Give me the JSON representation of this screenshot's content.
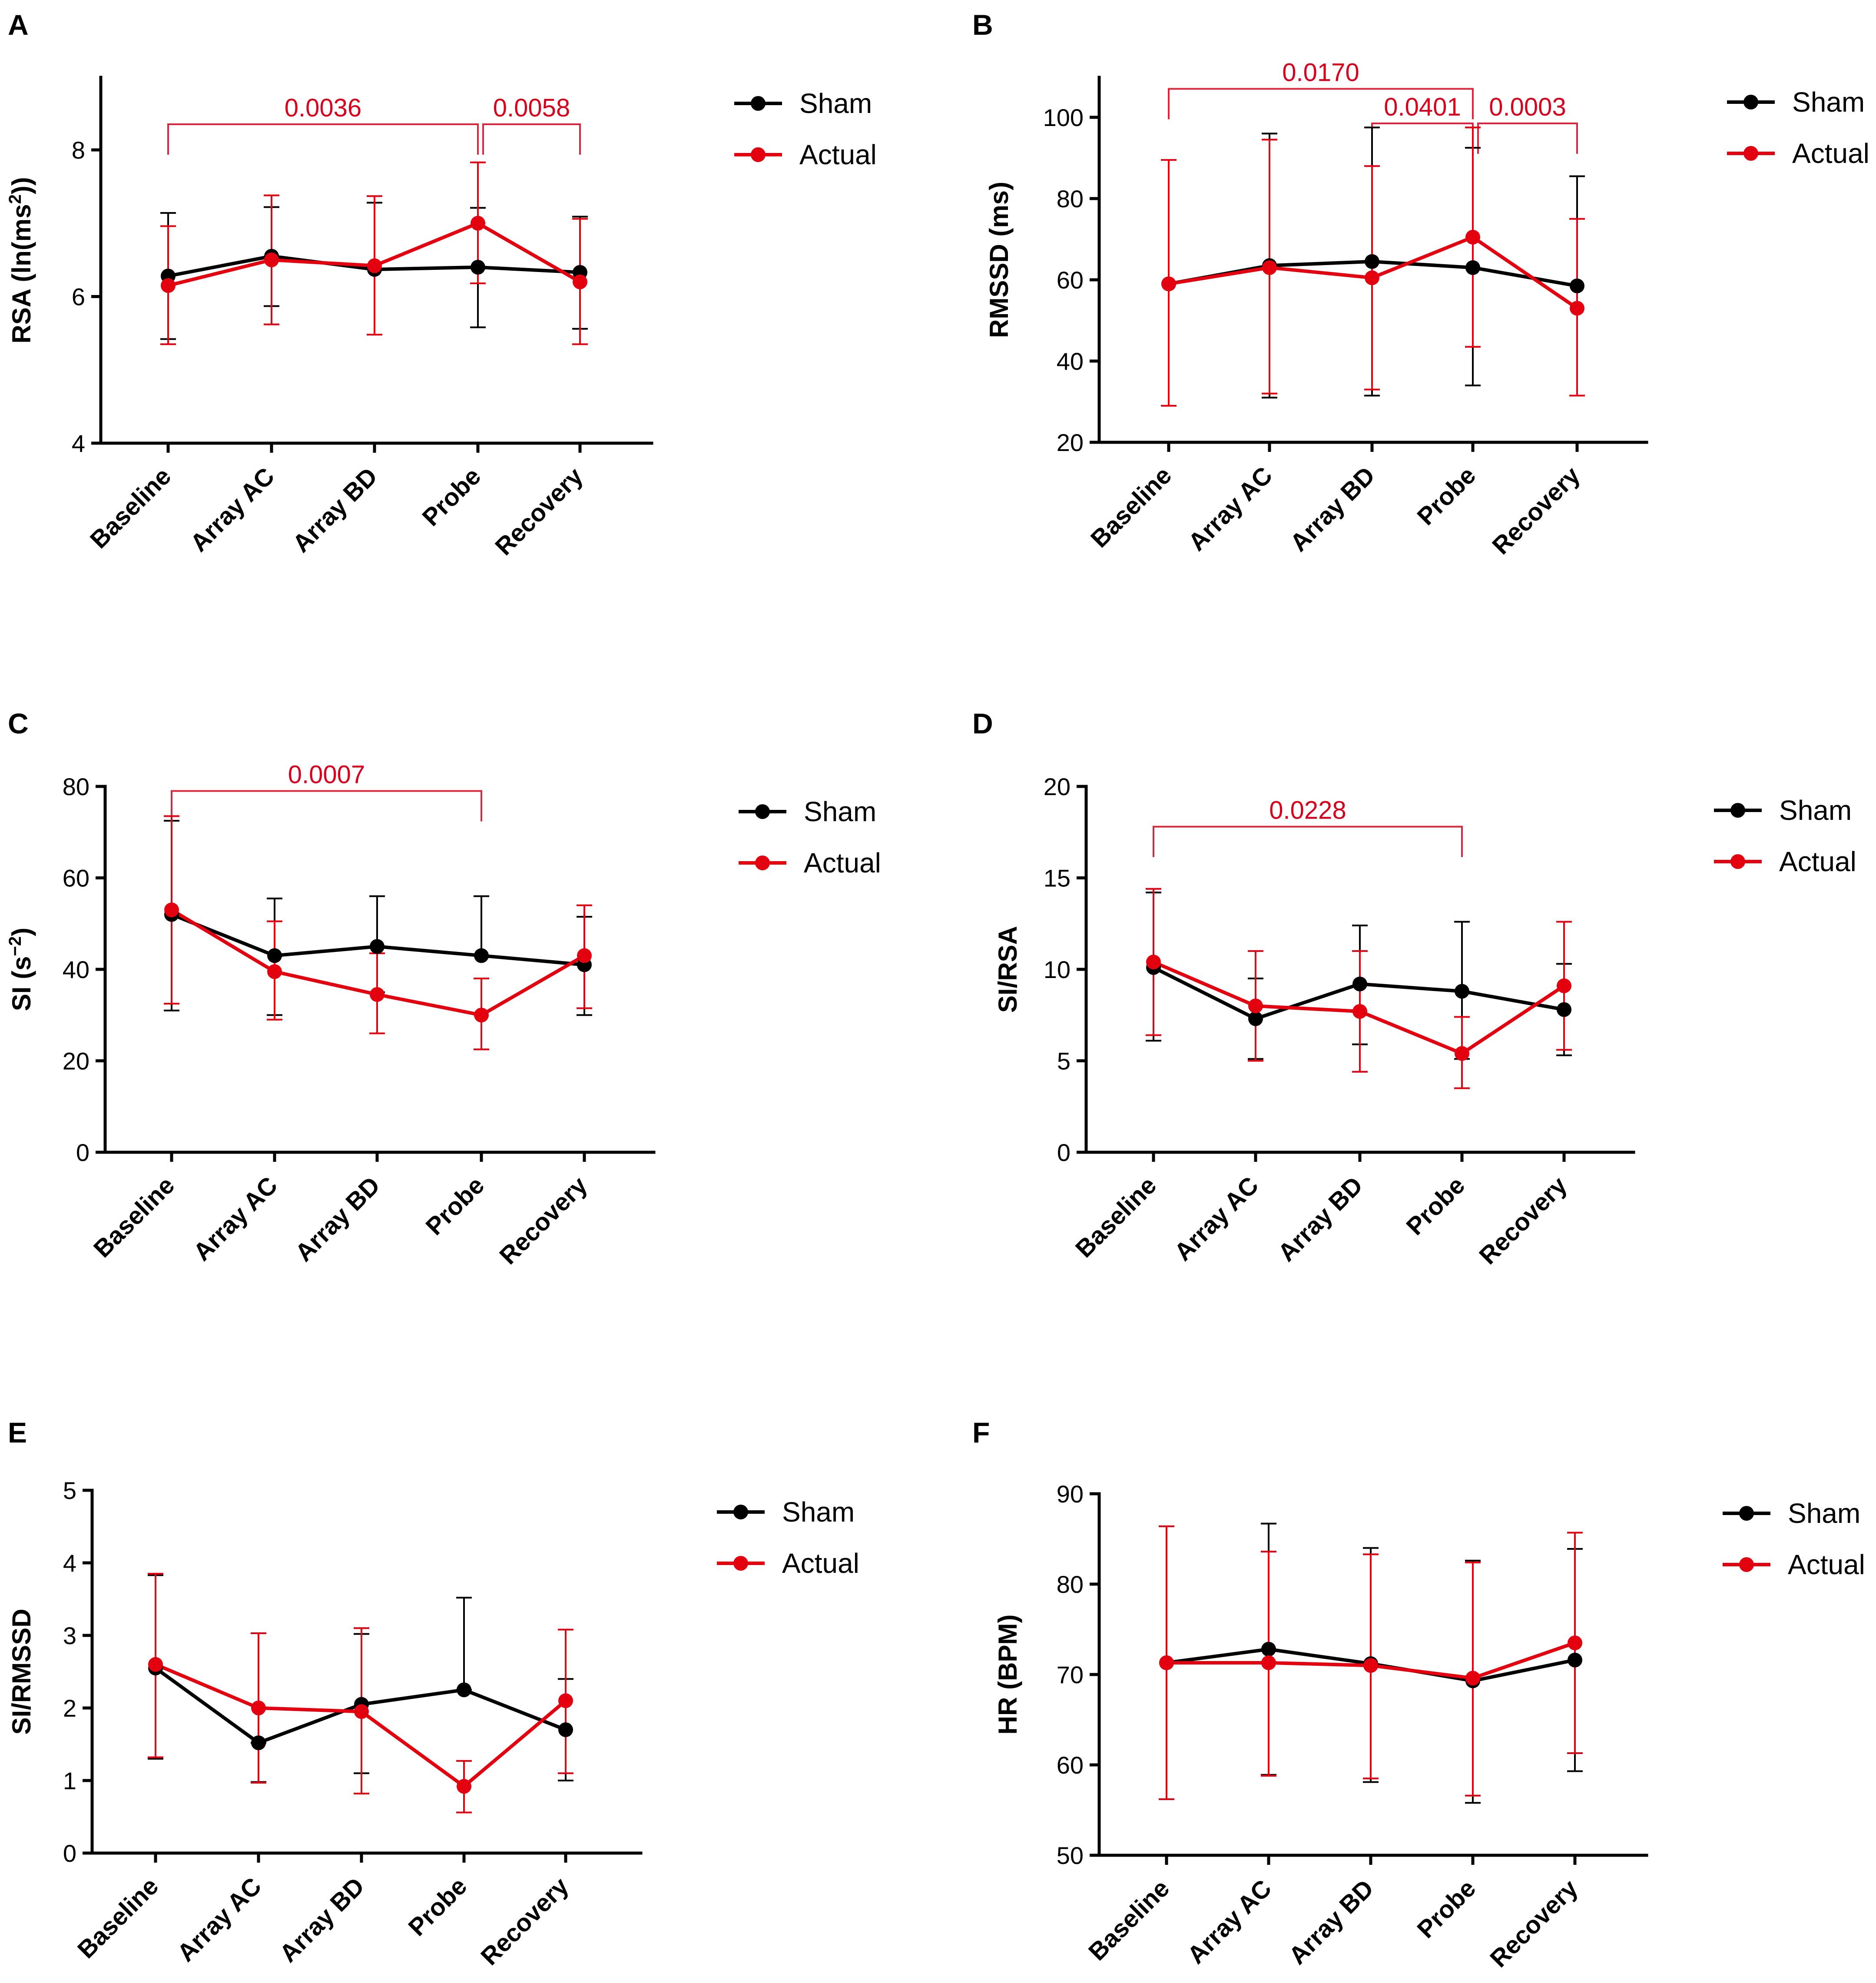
{
  "figure": "Six-panel line chart of heart rate variability measures across session stages",
  "colors": {
    "sham": "#000000",
    "actual": "#e3000f",
    "significance": "#d6001c"
  },
  "chart_data": [
    {
      "id": "A",
      "type": "line",
      "ylabel": "RSA (ln(ms²))",
      "ylabel_parts": [
        "RSA (ln(ms",
        "2",
        "))"
      ],
      "ylim": [
        4,
        9
      ],
      "yticks": [
        "4",
        "6",
        "8"
      ],
      "ytick_values": [
        4,
        6,
        8
      ],
      "categories": [
        "Baseline",
        "Array AC",
        "Array BD",
        "Probe",
        "Recovery"
      ],
      "legend": [
        "Sham",
        "Actual"
      ],
      "series": [
        {
          "name": "Sham",
          "values": [
            6.28,
            6.55,
            6.37,
            6.4,
            6.33
          ],
          "err_lo": [
            5.42,
            5.87,
            6.37,
            5.58,
            5.56
          ],
          "err_hi": [
            7.14,
            7.22,
            7.28,
            7.21,
            7.09
          ]
        },
        {
          "name": "Actual",
          "values": [
            6.15,
            6.5,
            6.42,
            7.0,
            6.2
          ],
          "err_lo": [
            5.35,
            5.62,
            5.48,
            6.18,
            5.35
          ],
          "err_hi": [
            6.96,
            7.38,
            7.37,
            7.83,
            7.06
          ]
        }
      ],
      "significance": [
        {
          "from": 0,
          "to": 3,
          "label": "0.0036",
          "y": 8.35
        },
        {
          "from": 3,
          "to": 4,
          "label": "0.0058",
          "y": 8.35
        }
      ]
    },
    {
      "id": "B",
      "type": "line",
      "ylabel": "RMSSD (ms)",
      "ylim": [
        20,
        110
      ],
      "yticks": [
        "20",
        "40",
        "60",
        "80",
        "100"
      ],
      "ytick_values": [
        20,
        40,
        60,
        80,
        100
      ],
      "categories": [
        "Baseline",
        "Array AC",
        "Array BD",
        "Probe",
        "Recovery"
      ],
      "legend": [
        "Sham",
        "Actual"
      ],
      "series": [
        {
          "name": "Sham",
          "values": [
            59,
            63.5,
            64.5,
            63,
            58.5
          ],
          "err_lo": [
            59,
            31,
            31.5,
            34,
            31.5
          ],
          "err_hi": [
            59,
            96,
            97.5,
            92.5,
            85.5
          ]
        },
        {
          "name": "Actual",
          "values": [
            59,
            63,
            60.5,
            70.5,
            53
          ],
          "err_lo": [
            29,
            32,
            33,
            43.5,
            31.5
          ],
          "err_hi": [
            89.5,
            94.5,
            88,
            97.5,
            75
          ]
        }
      ],
      "significance": [
        {
          "from": 0,
          "to": 3,
          "label": "0.0170",
          "y": 107
        },
        {
          "from": 2,
          "to": 3,
          "label": "0.0401",
          "y": 98.5
        },
        {
          "from": 3,
          "to": 4,
          "label": "0.0003",
          "y": 98.5
        }
      ]
    },
    {
      "id": "C",
      "type": "line",
      "ylabel": "SI (s⁻²)",
      "ylabel_parts": [
        "SI (s",
        "−2",
        ")"
      ],
      "ylim": [
        0,
        80
      ],
      "yticks": [
        "0",
        "20",
        "40",
        "60",
        "80"
      ],
      "ytick_values": [
        0,
        20,
        40,
        60,
        80
      ],
      "categories": [
        "Baseline",
        "Array AC",
        "Array BD",
        "Probe",
        "Recovery"
      ],
      "legend": [
        "Sham",
        "Actual"
      ],
      "series": [
        {
          "name": "Sham",
          "values": [
            52,
            43,
            45,
            43,
            41
          ],
          "err_lo": [
            31,
            30,
            35,
            43,
            30
          ],
          "err_hi": [
            72.5,
            55.5,
            56,
            56,
            51.5
          ]
        },
        {
          "name": "Actual",
          "values": [
            53,
            39.5,
            34.5,
            30,
            43
          ],
          "err_lo": [
            32.5,
            29,
            26,
            22.5,
            31.5
          ],
          "err_hi": [
            73.5,
            50.5,
            43.5,
            38,
            54
          ]
        }
      ],
      "significance": [
        {
          "from": 0,
          "to": 3,
          "label": "0.0007",
          "y": 79
        }
      ]
    },
    {
      "id": "D",
      "type": "line",
      "ylabel": "SI/RSA",
      "ylim": [
        0,
        20
      ],
      "yticks": [
        "0",
        "5",
        "10",
        "15",
        "20"
      ],
      "ytick_values": [
        0,
        5,
        10,
        15,
        20
      ],
      "categories": [
        "Baseline",
        "Array AC",
        "Array BD",
        "Probe",
        "Recovery"
      ],
      "legend": [
        "Sham",
        "Actual"
      ],
      "series": [
        {
          "name": "Sham",
          "values": [
            10.1,
            7.3,
            9.2,
            8.8,
            7.8
          ],
          "err_lo": [
            6.1,
            5.1,
            5.9,
            5.1,
            5.3
          ],
          "err_hi": [
            14.2,
            9.5,
            12.4,
            12.6,
            10.3
          ]
        },
        {
          "name": "Actual",
          "values": [
            10.4,
            8.0,
            7.7,
            5.4,
            9.1
          ],
          "err_lo": [
            6.4,
            5.0,
            4.4,
            3.5,
            5.6
          ],
          "err_hi": [
            14.4,
            11.0,
            11.0,
            7.4,
            12.6
          ]
        }
      ],
      "significance": [
        {
          "from": 0,
          "to": 3,
          "label": "0.0228",
          "y": 17.8
        }
      ]
    },
    {
      "id": "E",
      "type": "line",
      "ylabel": "SI/RMSSD",
      "ylim": [
        0,
        5
      ],
      "yticks": [
        "0",
        "1",
        "2",
        "3",
        "4",
        "5"
      ],
      "ytick_values": [
        0,
        1,
        2,
        3,
        4,
        5
      ],
      "categories": [
        "Baseline",
        "Array AC",
        "Array BD",
        "Probe",
        "Recovery"
      ],
      "legend": [
        "Sham",
        "Actual"
      ],
      "series": [
        {
          "name": "Sham",
          "values": [
            2.55,
            1.52,
            2.05,
            2.25,
            1.7
          ],
          "err_lo": [
            1.3,
            0.98,
            1.1,
            2.25,
            1.0
          ],
          "err_hi": [
            3.83,
            1.52,
            3.02,
            3.52,
            2.4
          ]
        },
        {
          "name": "Actual",
          "values": [
            2.6,
            2.0,
            1.95,
            0.92,
            2.1
          ],
          "err_lo": [
            1.32,
            0.97,
            0.82,
            0.56,
            1.1
          ],
          "err_hi": [
            3.85,
            3.03,
            3.1,
            1.27,
            3.08
          ]
        }
      ],
      "significance": []
    },
    {
      "id": "F",
      "type": "line",
      "ylabel": "HR (BPM)",
      "ylim": [
        50,
        90
      ],
      "yticks": [
        "50",
        "60",
        "70",
        "80",
        "90"
      ],
      "ytick_values": [
        50,
        60,
        70,
        80,
        90
      ],
      "categories": [
        "Baseline",
        "Array AC",
        "Array BD",
        "Probe",
        "Recovery"
      ],
      "legend": [
        "Sham",
        "Actual"
      ],
      "series": [
        {
          "name": "Sham",
          "values": [
            71.3,
            72.8,
            71.2,
            69.3,
            71.6
          ],
          "err_lo": [
            71.3,
            58.9,
            58.1,
            55.8,
            59.3
          ],
          "err_hi": [
            71.3,
            86.7,
            84.0,
            82.6,
            83.9
          ]
        },
        {
          "name": "Actual",
          "values": [
            71.3,
            71.3,
            71.0,
            69.6,
            73.5
          ],
          "err_lo": [
            56.2,
            58.8,
            58.5,
            56.6,
            61.3
          ],
          "err_hi": [
            86.4,
            83.6,
            83.3,
            82.4,
            85.7
          ]
        }
      ],
      "significance": []
    }
  ]
}
